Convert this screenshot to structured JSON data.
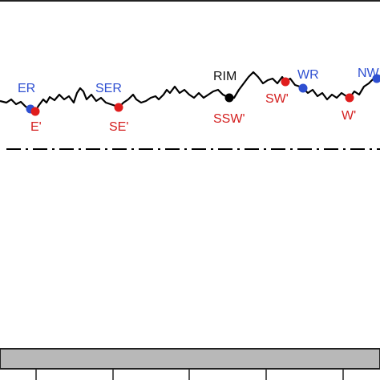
{
  "labels": [
    "ER",
    "E'",
    "SER",
    "SE'",
    "RIM",
    "SSW'",
    "SW'",
    "WR",
    "W'",
    "NW"
  ]
}
